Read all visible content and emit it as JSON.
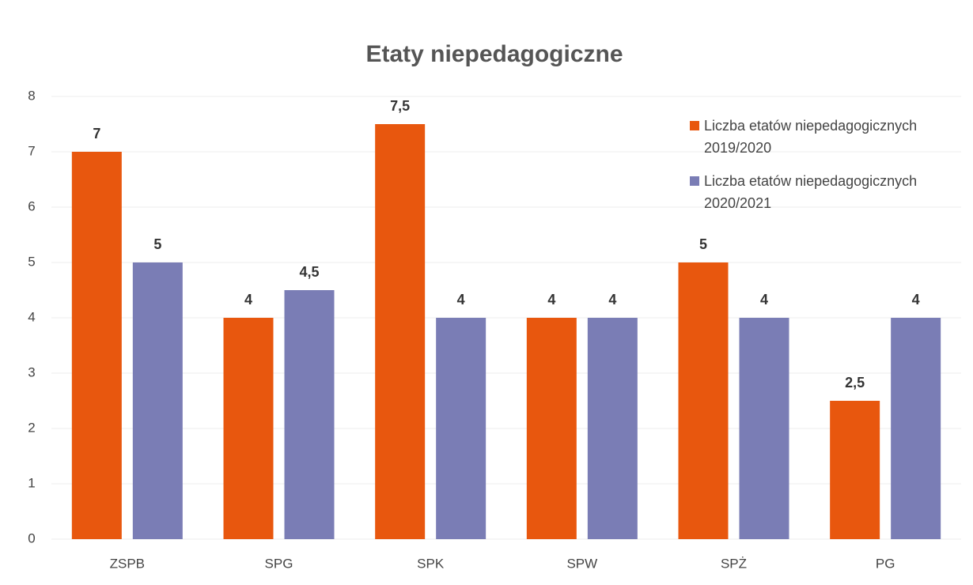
{
  "chart_data": {
    "type": "bar",
    "title": "Etaty niepedagogiczne",
    "categories": [
      "ZSPB",
      "SPG",
      "SPK",
      "SPW",
      "SPŻ",
      "PG"
    ],
    "series": [
      {
        "name": "Liczba etatów niepedagogicznych 2019/2020",
        "color": "#e8570e",
        "values": [
          7,
          4,
          7.5,
          4,
          5,
          2.5
        ],
        "value_labels": [
          "7",
          "4",
          "7,5",
          "4",
          "5",
          "2,5"
        ]
      },
      {
        "name": "Liczba etatów niepedagogicznych 2020/2021",
        "color": "#7a7db5",
        "values": [
          5,
          4.5,
          4,
          4,
          4,
          4
        ],
        "value_labels": [
          "5",
          "4,5",
          "4",
          "4",
          "4",
          "4"
        ]
      }
    ],
    "ylim": [
      0,
      8
    ],
    "yticks": [
      0,
      1,
      2,
      3,
      4,
      5,
      6,
      7,
      8
    ],
    "grid": true,
    "legend": "top-right"
  }
}
